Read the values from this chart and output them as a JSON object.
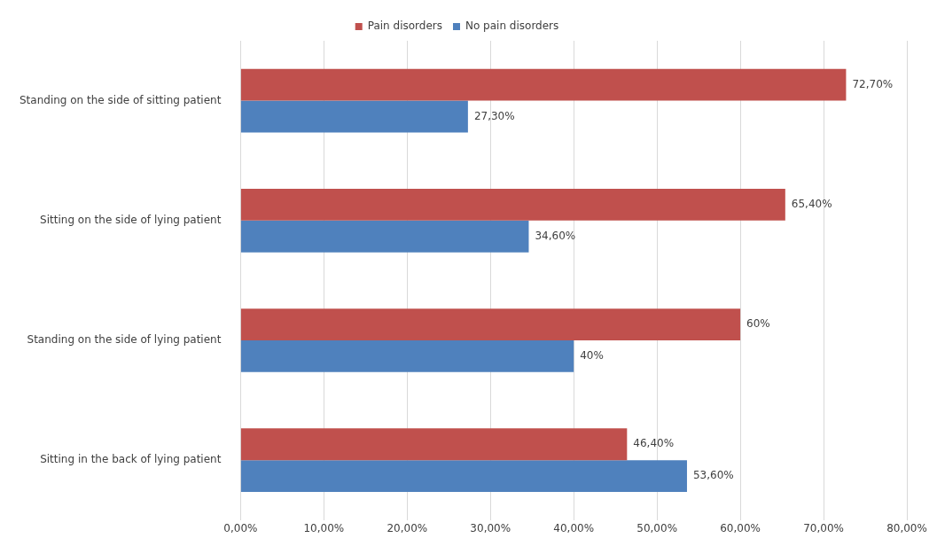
{
  "chart_data": {
    "type": "bar",
    "orientation": "horizontal",
    "categories": [
      "Standing on the side of sitting patient",
      "Sitting on the side of lying patient",
      "Standing on the side of lying patient",
      "Sitting in the back of lying patient"
    ],
    "series": [
      {
        "name": "Pain disorders",
        "color": "#c0504d",
        "values": [
          72.7,
          65.4,
          60,
          46.4
        ],
        "value_labels": [
          "72,70%",
          "65,40%",
          "60%",
          "46,40%"
        ]
      },
      {
        "name": "No pain disorders",
        "color": "#4f81bd",
        "values": [
          27.3,
          34.6,
          40,
          53.6
        ],
        "value_labels": [
          "27,30%",
          "34,60%",
          "40%",
          "53,60%"
        ]
      }
    ],
    "xlim": [
      0,
      80
    ],
    "xticks": [
      {
        "value": 0,
        "label": "0,00%"
      },
      {
        "value": 10,
        "label": "10,00%"
      },
      {
        "value": 20,
        "label": "20,00%"
      },
      {
        "value": 30,
        "label": "30,00%"
      },
      {
        "value": 40,
        "label": "40,00%"
      },
      {
        "value": 50,
        "label": "50,00%"
      },
      {
        "value": 60,
        "label": "60,00%"
      },
      {
        "value": 70,
        "label": "70,00%"
      },
      {
        "value": 80,
        "label": "80,00%"
      }
    ],
    "grid": "x",
    "legend": "top"
  }
}
